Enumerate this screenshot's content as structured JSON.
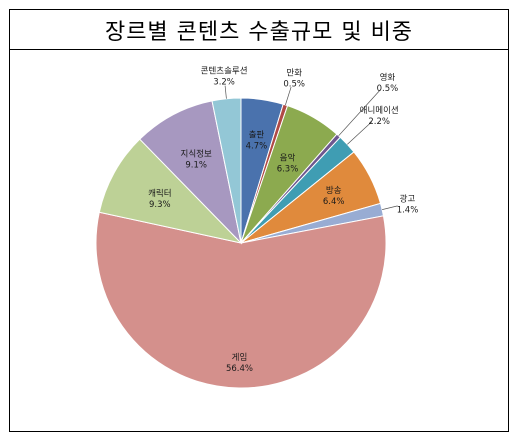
{
  "title": "장르별 콘텐츠 수출규모 및 비중",
  "chart_data": {
    "type": "pie",
    "title": "장르별 콘텐츠 수출규모 및 비중",
    "slices": [
      {
        "label": "출판",
        "value": 4.7,
        "value_label": "4.7%",
        "color": "#4a72ad"
      },
      {
        "label": "만화",
        "value": 0.5,
        "value_label": "0.5%",
        "color": "#b04a45"
      },
      {
        "label": "음악",
        "value": 6.3,
        "value_label": "6.3%",
        "color": "#8caa4f"
      },
      {
        "label": "영화",
        "value": 0.5,
        "value_label": "0.5%",
        "color": "#6d578f"
      },
      {
        "label": "애니메이션",
        "value": 2.2,
        "value_label": "2.2%",
        "color": "#3f9db3"
      },
      {
        "label": "방송",
        "value": 6.4,
        "value_label": "6.4%",
        "color": "#e08a3c"
      },
      {
        "label": "광고",
        "value": 1.4,
        "value_label": "1.4%",
        "color": "#98acd3"
      },
      {
        "label": "게임",
        "value": 56.4,
        "value_label": "56.4%",
        "color": "#d4908c"
      },
      {
        "label": "캐릭터",
        "value": 9.3,
        "value_label": "9.3%",
        "color": "#bdd196"
      },
      {
        "label": "지식정보",
        "value": 9.1,
        "value_label": "9.1%",
        "color": "#a798c0"
      },
      {
        "label": "콘텐츠솔루션",
        "value": 3.2,
        "value_label": "3.2%",
        "color": "#93c7d6"
      }
    ]
  }
}
